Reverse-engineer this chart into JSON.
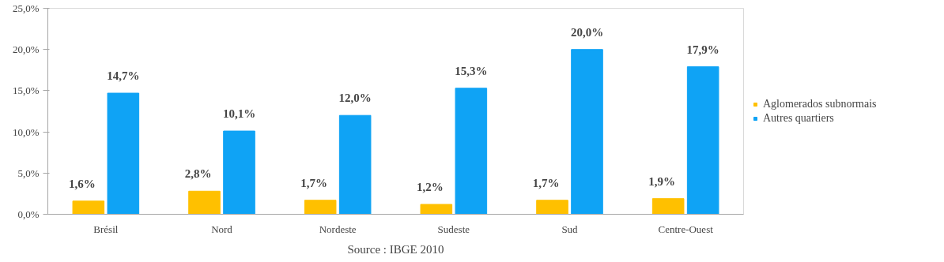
{
  "chart_data": {
    "type": "bar",
    "categories": [
      "Brésil",
      "Nord",
      "Nordeste",
      "Sudeste",
      "Sud",
      "Centre-Ouest"
    ],
    "series": [
      {
        "name": "Aglomerados subnormais",
        "color": "#ffc000",
        "values": [
          1.6,
          2.8,
          1.7,
          1.2,
          1.7,
          1.9
        ],
        "value_labels": [
          "1,6%",
          "2,8%",
          "1,7%",
          "1,2%",
          "1,7%",
          "1,9%"
        ]
      },
      {
        "name": "Autres quartiers",
        "color": "#0fa3f5",
        "values": [
          14.7,
          10.1,
          12.0,
          15.3,
          20.0,
          17.9
        ],
        "value_labels": [
          "14,7%",
          "10,1%",
          "12,0%",
          "15,3%",
          "20,0%",
          "17,9%"
        ]
      }
    ],
    "ylim": [
      0,
      25
    ],
    "yticks": [
      {
        "value": 0,
        "label": "0,0%"
      },
      {
        "value": 5,
        "label": "5,0%"
      },
      {
        "value": 10,
        "label": "10,0%"
      },
      {
        "value": 15,
        "label": "15,0%"
      },
      {
        "value": 20,
        "label": "20,0%"
      },
      {
        "value": 25,
        "label": "25,0%"
      }
    ],
    "grid": false,
    "legend": "right",
    "annotations": [
      "Source : IBGE 2010"
    ]
  }
}
